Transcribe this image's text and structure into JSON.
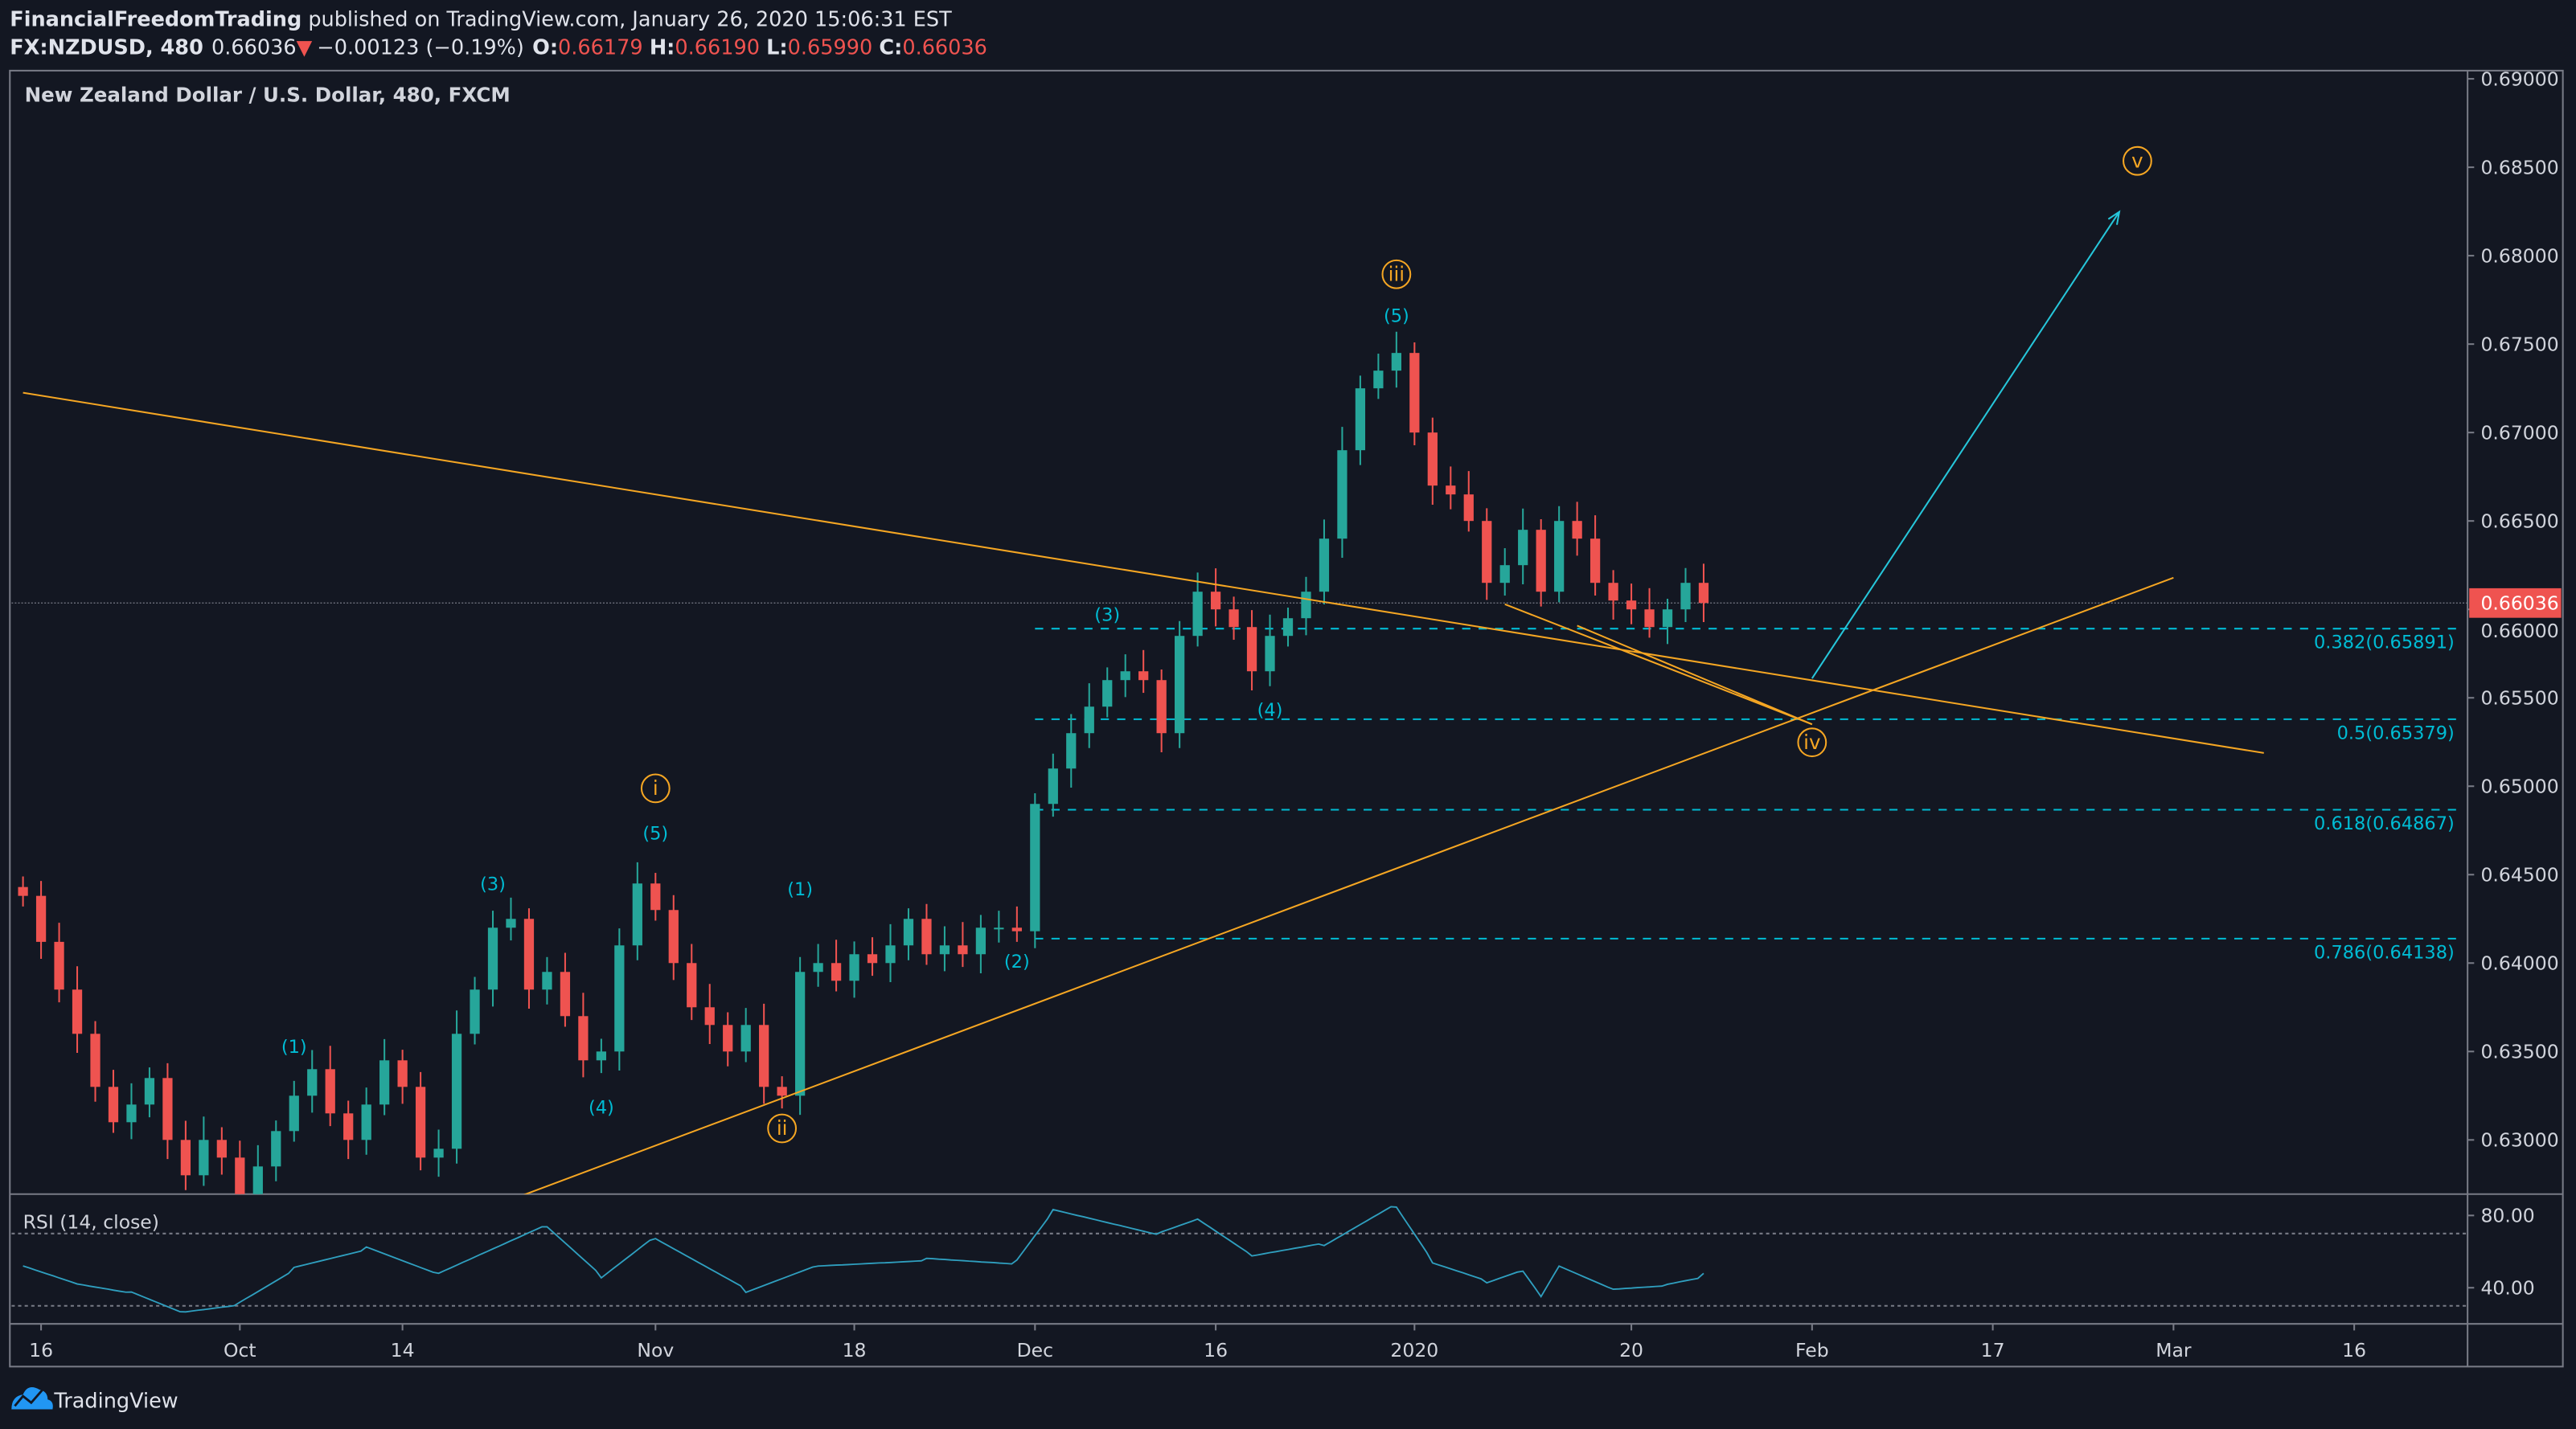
{
  "header": {
    "author": "FinancialFreedomTrading",
    "published": " published on TradingView.com, January 26, 2020 15:06:31 EST",
    "symbol": "FX:NZDUSD, 480",
    "last": "0.66036",
    "change": "−0.00123 (−0.19%)",
    "o_label": "O:",
    "o": "0.66179",
    "h_label": "H:",
    "h": "0.66190",
    "l_label": "L:",
    "l": "0.65990",
    "c_label": "C:",
    "c": "0.66036"
  },
  "chart_title": "New Zealand Dollar / U.S. Dollar, 480, FXCM",
  "rsi_label": "RSI (14, close)",
  "footer": {
    "brand": "TradingView",
    "logo_icon": "tradingview-cloud-icon"
  },
  "colors": {
    "background": "#131722",
    "up": "#26a69a",
    "down": "#ef5350",
    "drawing": "#f5a623",
    "fib": "#00bcd4",
    "rsi": "#2f9fbf",
    "text": "#d1d4dc"
  },
  "chart_data": {
    "type": "candlestick",
    "price_axis": {
      "range": [
        0.625,
        0.69
      ],
      "ticks": [
        "0.69000",
        "0.68500",
        "0.68000",
        "0.67500",
        "0.67000",
        "0.66500",
        "0.66000",
        "0.65500",
        "0.65000",
        "0.64500",
        "0.64000",
        "0.63500",
        "0.63000"
      ]
    },
    "current_price": "0.66036",
    "time_axis": {
      "ticks": [
        {
          "label": "16",
          "date": "2019-09-16"
        },
        {
          "label": "Oct",
          "date": "2019-10-01"
        },
        {
          "label": "14",
          "date": "2019-10-14"
        },
        {
          "label": "Nov",
          "date": "2019-11-01"
        },
        {
          "label": "18",
          "date": "2019-11-18"
        },
        {
          "label": "Dec",
          "date": "2019-12-02"
        },
        {
          "label": "16",
          "date": "2019-12-16"
        },
        {
          "label": "2020",
          "date": "2020-01-02"
        },
        {
          "label": "20",
          "date": "2020-01-20"
        },
        {
          "label": "Feb",
          "date": "2020-02-03"
        },
        {
          "label": "17",
          "date": "2020-02-17"
        },
        {
          "label": "Mar",
          "date": "2020-03-02"
        },
        {
          "label": "16",
          "date": "2020-03-16"
        }
      ]
    },
    "closes": [
      [
        "2019-09-13",
        0.6438
      ],
      [
        "2019-09-16",
        0.6412
      ],
      [
        "2019-09-17",
        0.6385
      ],
      [
        "2019-09-18",
        0.636
      ],
      [
        "2019-09-19",
        0.633
      ],
      [
        "2019-09-20",
        0.631
      ],
      [
        "2019-09-23",
        0.632
      ],
      [
        "2019-09-24",
        0.6335
      ],
      [
        "2019-09-25",
        0.63
      ],
      [
        "2019-09-26",
        0.628
      ],
      [
        "2019-09-27",
        0.63
      ],
      [
        "2019-09-30",
        0.629
      ],
      [
        "2019-10-01",
        0.6265
      ],
      [
        "2019-10-02",
        0.6285
      ],
      [
        "2019-10-03",
        0.6305
      ],
      [
        "2019-10-04",
        0.6325
      ],
      [
        "2019-10-07",
        0.634
      ],
      [
        "2019-10-08",
        0.6315
      ],
      [
        "2019-10-09",
        0.63
      ],
      [
        "2019-10-10",
        0.632
      ],
      [
        "2019-10-11",
        0.6345
      ],
      [
        "2019-10-14",
        0.633
      ],
      [
        "2019-10-15",
        0.629
      ],
      [
        "2019-10-16",
        0.6295
      ],
      [
        "2019-10-17",
        0.636
      ],
      [
        "2019-10-18",
        0.6385
      ],
      [
        "2019-10-21",
        0.642
      ],
      [
        "2019-10-22",
        0.6425
      ],
      [
        "2019-10-23",
        0.6385
      ],
      [
        "2019-10-24",
        0.6395
      ],
      [
        "2019-10-25",
        0.637
      ],
      [
        "2019-10-28",
        0.6345
      ],
      [
        "2019-10-29",
        0.635
      ],
      [
        "2019-10-30",
        0.641
      ],
      [
        "2019-10-31",
        0.6445
      ],
      [
        "2019-11-01",
        0.643
      ],
      [
        "2019-11-04",
        0.64
      ],
      [
        "2019-11-05",
        0.6375
      ],
      [
        "2019-11-06",
        0.6365
      ],
      [
        "2019-11-07",
        0.635
      ],
      [
        "2019-11-08",
        0.6365
      ],
      [
        "2019-11-11",
        0.633
      ],
      [
        "2019-11-12",
        0.6325
      ],
      [
        "2019-11-13",
        0.6395
      ],
      [
        "2019-11-14",
        0.64
      ],
      [
        "2019-11-15",
        0.639
      ],
      [
        "2019-11-18",
        0.6405
      ],
      [
        "2019-11-19",
        0.64
      ],
      [
        "2019-11-20",
        0.641
      ],
      [
        "2019-11-21",
        0.6425
      ],
      [
        "2019-11-22",
        0.6405
      ],
      [
        "2019-11-25",
        0.641
      ],
      [
        "2019-11-26",
        0.6405
      ],
      [
        "2019-11-27",
        0.642
      ],
      [
        "2019-11-28",
        0.642
      ],
      [
        "2019-11-29",
        0.6418
      ],
      [
        "2019-12-02",
        0.649
      ],
      [
        "2019-12-03",
        0.651
      ],
      [
        "2019-12-04",
        0.653
      ],
      [
        "2019-12-05",
        0.6545
      ],
      [
        "2019-12-06",
        0.656
      ],
      [
        "2019-12-09",
        0.6565
      ],
      [
        "2019-12-10",
        0.656
      ],
      [
        "2019-12-11",
        0.653
      ],
      [
        "2019-12-12",
        0.6585
      ],
      [
        "2019-12-13",
        0.661
      ],
      [
        "2019-12-16",
        0.66
      ],
      [
        "2019-12-17",
        0.659
      ],
      [
        "2019-12-18",
        0.6565
      ],
      [
        "2019-12-19",
        0.6585
      ],
      [
        "2019-12-20",
        0.6595
      ],
      [
        "2019-12-23",
        0.661
      ],
      [
        "2019-12-24",
        0.664
      ],
      [
        "2019-12-26",
        0.669
      ],
      [
        "2019-12-27",
        0.6725
      ],
      [
        "2019-12-30",
        0.6735
      ],
      [
        "2019-12-31",
        0.6745
      ],
      [
        "2020-01-02",
        0.67
      ],
      [
        "2020-01-03",
        0.667
      ],
      [
        "2020-01-06",
        0.6665
      ],
      [
        "2020-01-07",
        0.665
      ],
      [
        "2020-01-08",
        0.6615
      ],
      [
        "2020-01-09",
        0.6625
      ],
      [
        "2020-01-10",
        0.6645
      ],
      [
        "2020-01-13",
        0.661
      ],
      [
        "2020-01-14",
        0.665
      ],
      [
        "2020-01-15",
        0.664
      ],
      [
        "2020-01-16",
        0.6615
      ],
      [
        "2020-01-17",
        0.6605
      ],
      [
        "2020-01-20",
        0.66
      ],
      [
        "2020-01-21",
        0.659
      ],
      [
        "2020-01-22",
        0.66
      ],
      [
        "2020-01-23",
        0.6615
      ],
      [
        "2020-01-24",
        0.66036
      ]
    ],
    "rsi": {
      "period": 14,
      "levels": [
        70,
        30
      ],
      "axis_ticks": [
        "80.00",
        "40.00"
      ],
      "points": [
        [
          "2019-09-13",
          55
        ],
        [
          "2019-09-18",
          45
        ],
        [
          "2019-09-23",
          40
        ],
        [
          "2019-09-26",
          28
        ],
        [
          "2019-10-01",
          32
        ],
        [
          "2019-10-04",
          50
        ],
        [
          "2019-10-10",
          60
        ],
        [
          "2019-10-16",
          45
        ],
        [
          "2019-10-24",
          72
        ],
        [
          "2019-10-29",
          45
        ],
        [
          "2019-11-01",
          68
        ],
        [
          "2019-11-08",
          40
        ],
        [
          "2019-11-14",
          55
        ],
        [
          "2019-11-22",
          58
        ],
        [
          "2019-11-29",
          55
        ],
        [
          "2019-12-03",
          82
        ],
        [
          "2019-12-11",
          68
        ],
        [
          "2019-12-13",
          75
        ],
        [
          "2019-12-18",
          55
        ],
        [
          "2019-12-24",
          62
        ],
        [
          "2019-12-31",
          85
        ],
        [
          "2020-01-03",
          55
        ],
        [
          "2020-01-08",
          45
        ],
        [
          "2020-01-10",
          52
        ],
        [
          "2020-01-13",
          38
        ],
        [
          "2020-01-14",
          55
        ],
        [
          "2020-01-17",
          42
        ],
        [
          "2020-01-22",
          44
        ],
        [
          "2020-01-24",
          48
        ]
      ]
    },
    "fibonacci": [
      {
        "label": "0.382(0.65891)",
        "price": 0.65891
      },
      {
        "label": "0.5(0.65379)",
        "price": 0.65379
      },
      {
        "label": "0.618(0.64867)",
        "price": 0.64867
      },
      {
        "label": "0.786(0.64138)",
        "price": 0.64138
      }
    ],
    "fib_start_date": "2019-12-02",
    "trendlines": [
      {
        "name": "descending-trendline",
        "from": [
          "2019-09-13",
          0.67225
        ],
        "to": [
          "2020-03-09",
          0.65188
        ]
      },
      {
        "name": "ascending-trendline",
        "from": [
          "2019-10-22",
          0.62662
        ],
        "to": [
          "2020-03-02",
          0.66179
        ]
      },
      {
        "name": "wave-iv-path-1",
        "from": [
          "2020-01-09",
          0.66029
        ],
        "to": [
          "2020-02-03",
          0.6535
        ]
      },
      {
        "name": "wave-iv-path-2",
        "from": [
          "2020-01-15",
          0.65908
        ],
        "to": [
          "2020-02-03",
          0.6535
        ]
      }
    ],
    "projection_arrow": {
      "from": [
        "2020-02-03",
        0.6561
      ],
      "to": [
        "2020-02-26",
        0.68248
      ]
    },
    "wave_labels_major": [
      {
        "text": "i",
        "date": "2019-11-01",
        "price": 0.64988
      },
      {
        "text": "ii",
        "date": "2019-11-12",
        "price": 0.63065
      },
      {
        "text": "iii",
        "date": "2019-12-31",
        "price": 0.67895
      },
      {
        "text": "iv",
        "date": "2020-02-03",
        "price": 0.65248
      },
      {
        "text": "v",
        "date": "2020-02-27",
        "price": 0.68536
      }
    ],
    "wave_labels_minor": [
      {
        "text": "(1)",
        "date": "2019-10-04",
        "price": 0.63529
      },
      {
        "text": "(3)",
        "date": "2019-10-21",
        "price": 0.64449
      },
      {
        "text": "(4)",
        "date": "2019-10-29",
        "price": 0.63186
      },
      {
        "text": "(5)",
        "date": "2019-11-01",
        "price": 0.64737
      },
      {
        "text": "(1)",
        "date": "2019-11-13",
        "price": 0.64421
      },
      {
        "text": "(2)",
        "date": "2019-11-29",
        "price": 0.64012
      },
      {
        "text": "(3)",
        "date": "2019-12-06",
        "price": 0.65972
      },
      {
        "text": "(4)",
        "date": "2019-12-19",
        "price": 0.65433
      },
      {
        "text": "(5)",
        "date": "2019-12-31",
        "price": 0.67663
      }
    ]
  }
}
